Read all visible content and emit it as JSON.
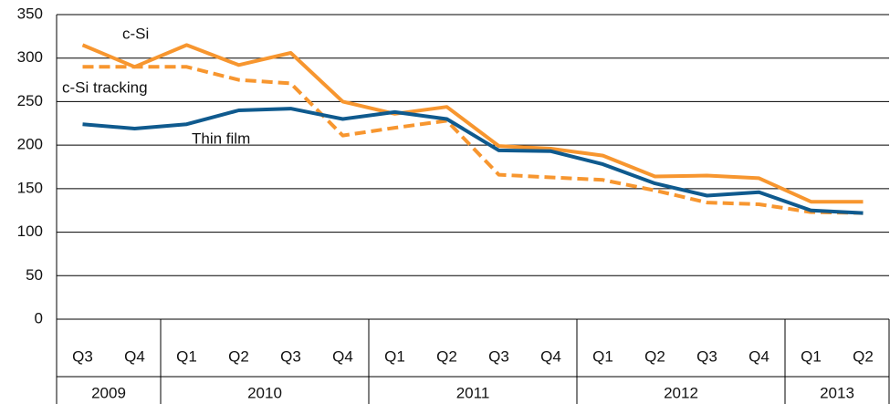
{
  "chart_data": {
    "type": "line",
    "categories": [
      "Q3",
      "Q4",
      "Q1",
      "Q2",
      "Q3",
      "Q4",
      "Q1",
      "Q2",
      "Q3",
      "Q4",
      "Q1",
      "Q2",
      "Q3",
      "Q4",
      "Q1",
      "Q2"
    ],
    "groups": [
      {
        "label": "2009",
        "span": 2
      },
      {
        "label": "2010",
        "span": 4
      },
      {
        "label": "2011",
        "span": 4
      },
      {
        "label": "2012",
        "span": 4
      },
      {
        "label": "2013",
        "span": 2
      }
    ],
    "series": [
      {
        "name": "c-Si",
        "color": "#f7962f",
        "dashed": false,
        "values": [
          315,
          290,
          315,
          292,
          306,
          250,
          236,
          244,
          199,
          196,
          188,
          164,
          165,
          162,
          135,
          135
        ]
      },
      {
        "name": "c-Si tracking",
        "color": "#f7962f",
        "dashed": true,
        "values": [
          290,
          290,
          290,
          275,
          271,
          211,
          220,
          228,
          166,
          163,
          160,
          148,
          134,
          132,
          123,
          122
        ]
      },
      {
        "name": "Thin film",
        "color": "#0f5a8e",
        "dashed": false,
        "values": [
          224,
          219,
          224,
          240,
          242,
          230,
          238,
          230,
          194,
          193,
          178,
          156,
          142,
          146,
          125,
          122
        ]
      }
    ],
    "ylim": [
      0,
      350
    ],
    "yticks": [
      0,
      50,
      100,
      150,
      200,
      250,
      300,
      350
    ],
    "grid": true
  }
}
